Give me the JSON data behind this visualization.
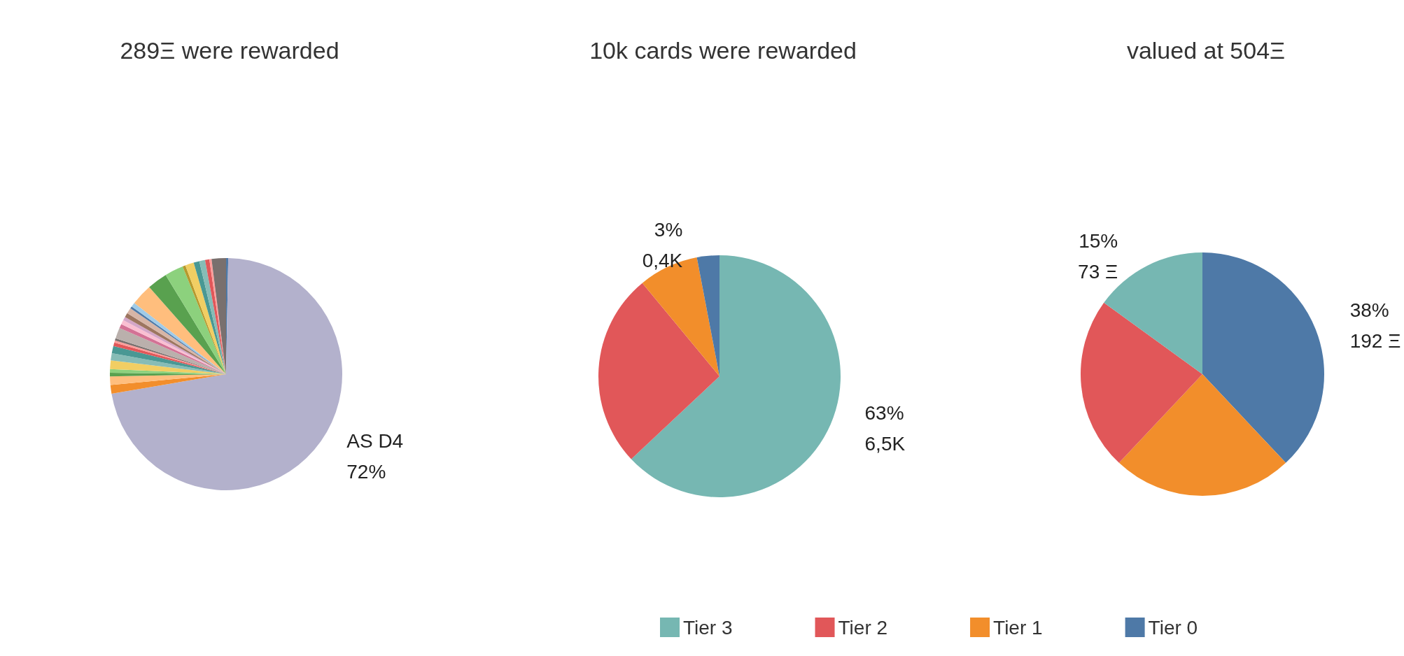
{
  "chart_data": [
    {
      "type": "pie",
      "title": "289Ξ were rewarded",
      "legend": false,
      "categories": [
        null,
        null,
        null,
        null,
        null,
        null,
        null,
        null,
        null,
        null,
        null,
        null,
        null,
        null,
        null,
        null,
        null,
        null,
        null,
        null,
        null,
        null,
        null,
        null,
        null,
        null,
        null,
        null,
        null,
        null
      ],
      "values": [
        0.3,
        72,
        1.2,
        1.2,
        0.5,
        0.5,
        1.2,
        1.0,
        1.0,
        0.5,
        0.3,
        0.3,
        1.5,
        0.6,
        0.6,
        0.5,
        0.6,
        0.8,
        0.3,
        0.6,
        3.0,
        2.8,
        2.6,
        0.4,
        1.2,
        0.8,
        0.8,
        0.6,
        0.3,
        2.0
      ],
      "colors": [
        "#4e79a7",
        "#b3b1cc",
        "#f28e2b",
        "#ffbe7d",
        "#59a14f",
        "#8cd17d",
        "#f1ce63",
        "#86bcb6",
        "#499894",
        "#e15759",
        "#ff9d9a",
        "#79706e",
        "#bab0ac",
        "#d37295",
        "#fabfd2",
        "#d4a6c8",
        "#9d7660",
        "#d7b5a6",
        "#4e79a7",
        "#a0cbe8",
        "#ffbe7d",
        "#59a14f",
        "#8cd17d",
        "#b6992d",
        "#f1ce63",
        "#499894",
        "#86bcb6",
        "#e15759",
        "#ff9d9a",
        "#79706e"
      ],
      "value_labels": [
        null,
        "AS D4\n72%",
        null,
        null,
        null,
        null,
        null,
        null,
        null,
        null,
        null,
        null,
        null,
        null,
        null,
        null,
        null,
        null,
        null,
        null,
        null,
        null,
        null,
        null,
        null,
        null,
        null,
        null,
        null,
        null
      ]
    },
    {
      "type": "pie",
      "title": "10k cards were rewarded",
      "legend": "bottom",
      "categories": [
        "Tier 3",
        "Tier 2",
        "Tier 1",
        "Tier 0"
      ],
      "values": [
        63,
        26,
        8,
        3
      ],
      "colors": [
        "#76b7b2",
        "#e15759",
        "#f28e2b",
        "#4e79a7"
      ],
      "value_labels": [
        "63%\n6,5K",
        null,
        null,
        "3%\n0,4K"
      ]
    },
    {
      "type": "pie",
      "title": "valued at 504Ξ",
      "legend": false,
      "categories": [
        null,
        null,
        null,
        null
      ],
      "values": [
        38,
        24,
        23,
        15
      ],
      "colors": [
        "#4e79a7",
        "#f28e2b",
        "#e15759",
        "#76b7b2"
      ],
      "value_labels": [
        "38%\n192 Ξ",
        null,
        null,
        "15%\n73 Ξ"
      ]
    }
  ]
}
